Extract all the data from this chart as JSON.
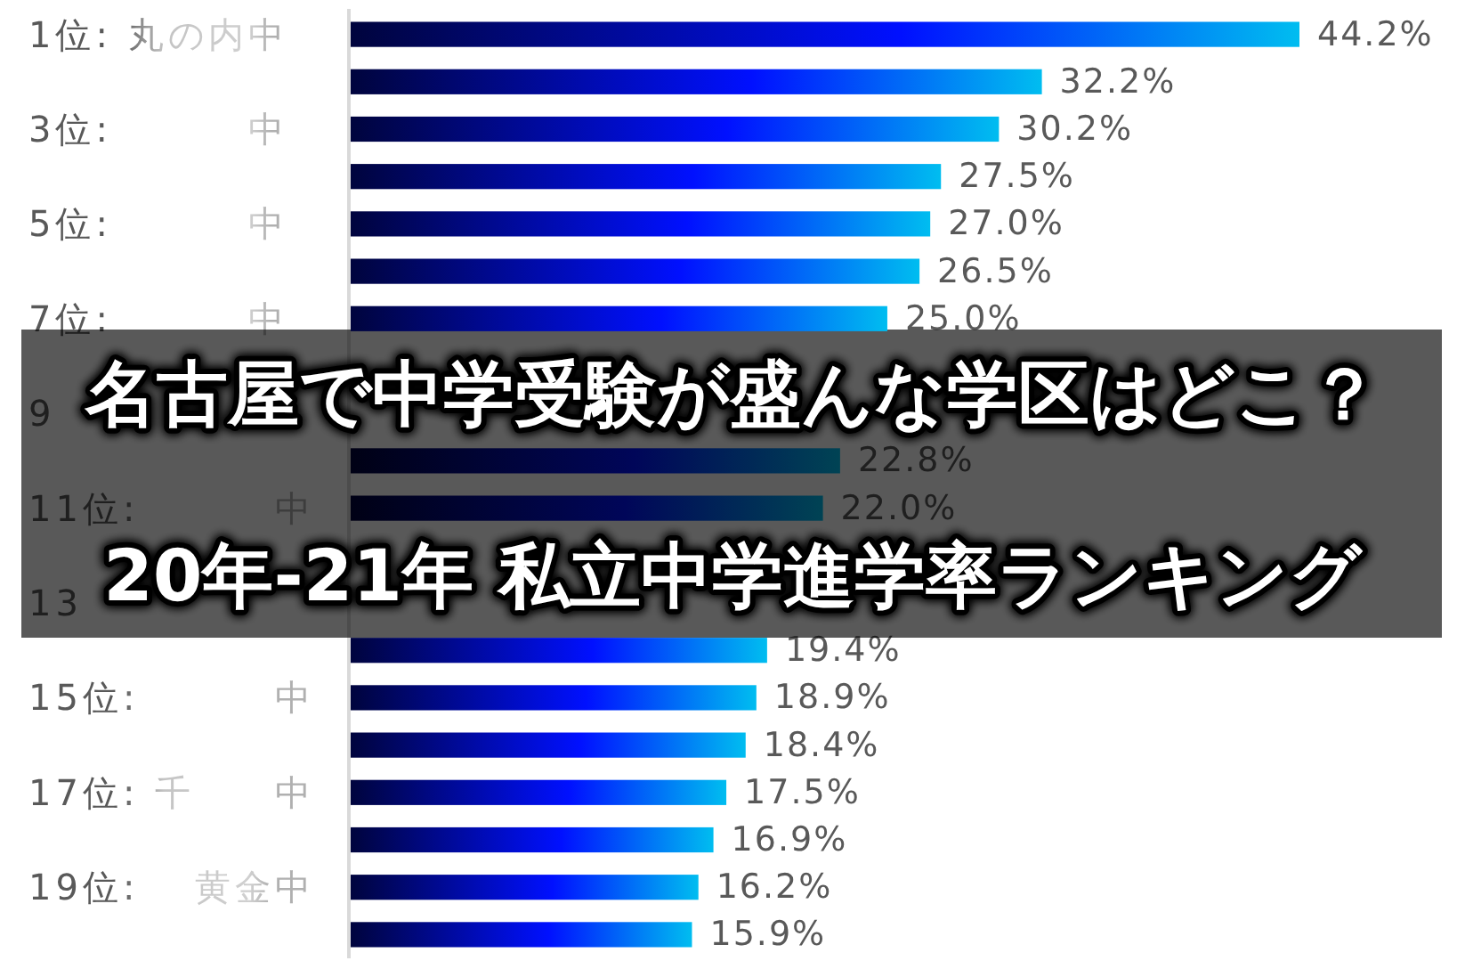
{
  "chart_data": {
    "type": "bar",
    "orientation": "horizontal",
    "title": "名古屋で中学受験が盛んな学区はどこ？",
    "subtitle": "20年-21年 私立中学進学率ランキング",
    "categories": [
      "1位: 丸の内中",
      null,
      "3位: 　　　中",
      null,
      "5位: 　　　中",
      null,
      "7位: 　　　中",
      null,
      "9",
      null,
      "11位: 　　　中",
      null,
      "13",
      null,
      "15位: 　　　中",
      null,
      "17位: 千　　中",
      null,
      "19位: 　黄金中",
      null
    ],
    "values": [
      44.2,
      32.2,
      30.2,
      27.5,
      27.0,
      26.5,
      25.0,
      null,
      null,
      22.8,
      22.0,
      null,
      null,
      19.4,
      18.9,
      18.4,
      17.5,
      16.9,
      16.2,
      15.9
    ],
    "value_labels": [
      "44.2%",
      "32.2%",
      "30.2%",
      "27.5%",
      "27.0%",
      "26.5%",
      "25.0%",
      null,
      null,
      "22.8%",
      "22.0%",
      null,
      null,
      "19.4%",
      "18.9%",
      "18.4%",
      "17.5%",
      "16.9%",
      "16.2%",
      "15.9%"
    ],
    "colors": [
      "#0010ff",
      "#0010ff",
      "#0010ff",
      "#0010ff",
      "#0010ff",
      "#0010ff",
      "#0010ff",
      null,
      null,
      "#000659",
      "#000659",
      null,
      null,
      "#0010ff",
      "#0010ff",
      "#0010ff",
      "#0010ff",
      "#0010ff",
      "#0010ff",
      "#0010ff"
    ],
    "grid": false
  }
}
